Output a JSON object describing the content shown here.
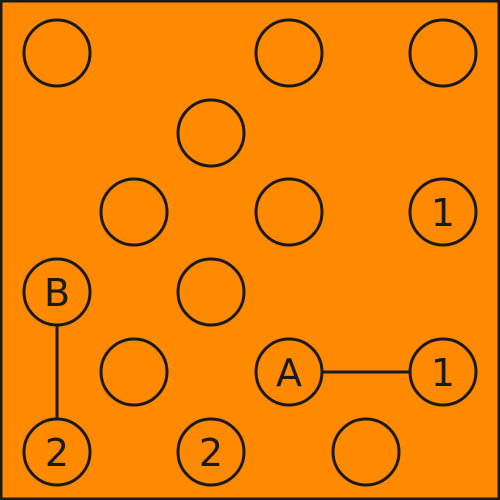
{
  "puzzle": {
    "background_color": "#ff8a00",
    "stroke_color": "#1a1a1a",
    "nodes": [
      {
        "id": "n1",
        "label": ""
      },
      {
        "id": "n2",
        "label": ""
      },
      {
        "id": "n3",
        "label": ""
      },
      {
        "id": "n4",
        "label": ""
      },
      {
        "id": "n5",
        "label": ""
      },
      {
        "id": "n6",
        "label": ""
      },
      {
        "id": "n7",
        "label": "1"
      },
      {
        "id": "n8",
        "label": "B"
      },
      {
        "id": "n9",
        "label": ""
      },
      {
        "id": "n10",
        "label": ""
      },
      {
        "id": "n11",
        "label": "A"
      },
      {
        "id": "n12",
        "label": "1"
      },
      {
        "id": "n13",
        "label": "2"
      },
      {
        "id": "n14",
        "label": "2"
      },
      {
        "id": "n15",
        "label": ""
      }
    ],
    "links": [
      {
        "from": "n8",
        "to": "n13"
      },
      {
        "from": "n11",
        "to": "n12"
      }
    ]
  }
}
